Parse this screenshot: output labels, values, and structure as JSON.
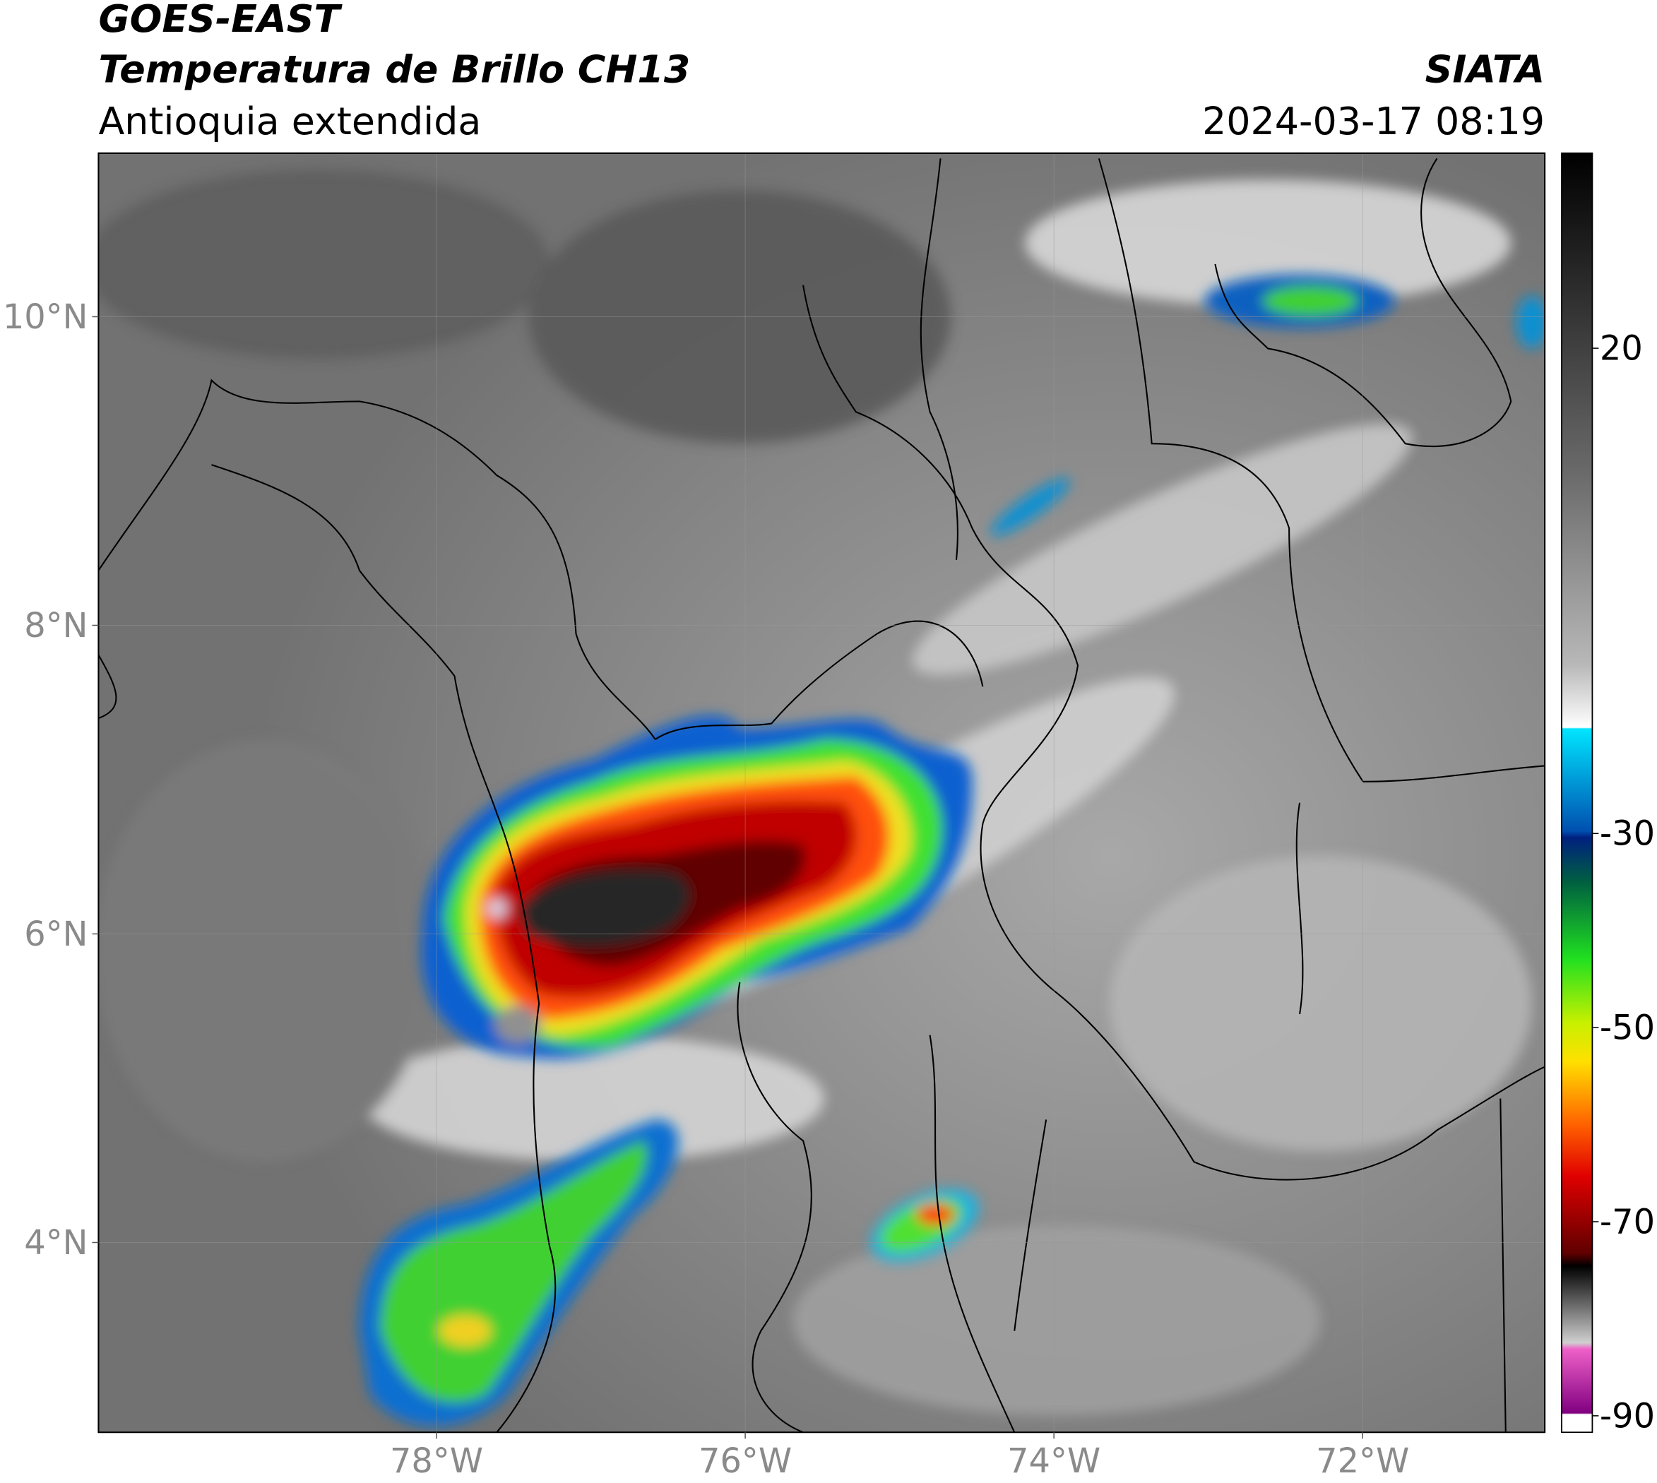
{
  "header": {
    "title": "GOES-EAST",
    "subtitle": "Temperatura de Brillo CH13",
    "region": "Antioquia extendida",
    "source": "SIATA",
    "datetime": "2024-03-17 08:19"
  },
  "map": {
    "xlim": [
      -80.19,
      -70.82
    ],
    "ylim": [
      2.77,
      11.06
    ],
    "xticks": [
      {
        "value": -78,
        "label": "78°W"
      },
      {
        "value": -76,
        "label": "76°W"
      },
      {
        "value": -74,
        "label": "74°W"
      },
      {
        "value": -72,
        "label": "72°W"
      }
    ],
    "yticks": [
      {
        "value": 4,
        "label": "4°N"
      },
      {
        "value": 6,
        "label": "6°N"
      },
      {
        "value": 8,
        "label": "8°N"
      },
      {
        "value": 10,
        "label": "10°N"
      }
    ]
  },
  "colorbar": {
    "lim": [
      -91.7,
      40.1
    ],
    "ticks": [
      20,
      -30,
      -50,
      -70,
      -90
    ]
  }
}
